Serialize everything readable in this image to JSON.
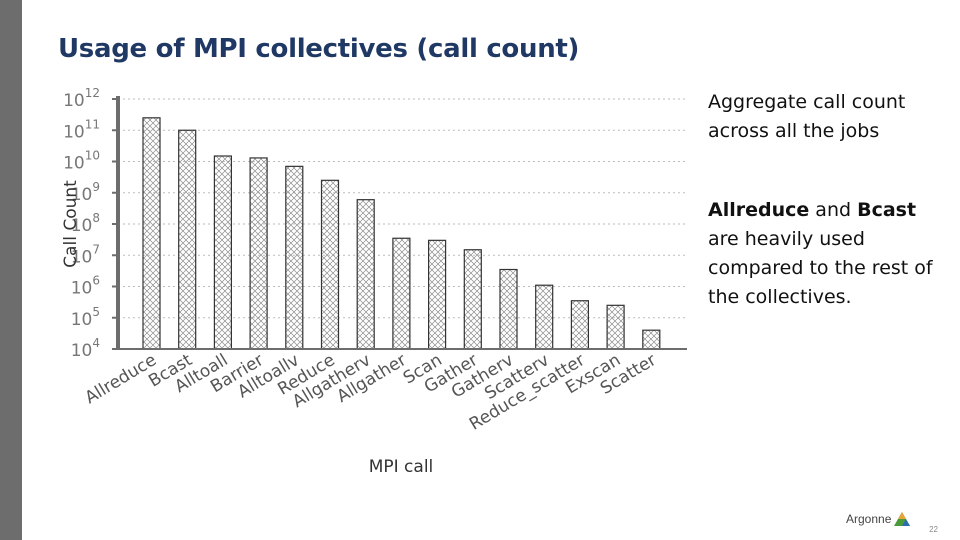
{
  "slide": {
    "title": "Usage of MPI collectives (call count)",
    "notes": {
      "line1": "Aggregate call count",
      "line2": "across all the jobs",
      "bold1": "Allreduce",
      "and": " and ",
      "bold2": "Bcast",
      "line4": "are heavily used",
      "line5": "compared to the rest of",
      "line6": "the collectives."
    },
    "logo_text": "Argonne",
    "page_number": "22"
  },
  "colors": {
    "title": "#1f3864",
    "bar_stroke": "#333333",
    "hatch": "#8c8c8c",
    "grid": "#bbbbbb"
  },
  "chart_data": {
    "type": "bar",
    "log_scale": true,
    "grid": "horizontal dashed",
    "xlabel": "MPI call",
    "ylabel": "Call Count",
    "ylim": [
      10000,
      1000000000000
    ],
    "yticks": [
      4,
      5,
      6,
      7,
      8,
      9,
      10,
      11,
      12
    ],
    "categories": [
      "Allreduce",
      "Bcast",
      "Alltoall",
      "Barrier",
      "Alltoallv",
      "Reduce",
      "Allgatherv",
      "Allgather",
      "Scan",
      "Gather",
      "Gatherv",
      "Scatterv",
      "Reduce_scatter",
      "Exscan",
      "Scatter"
    ],
    "values": [
      250000000000,
      100000000000,
      15000000000,
      13000000000,
      7000000000,
      2500000000,
      600000000,
      35000000,
      30000000,
      15000000,
      3500000,
      1100000,
      350000,
      250000,
      40000
    ]
  }
}
